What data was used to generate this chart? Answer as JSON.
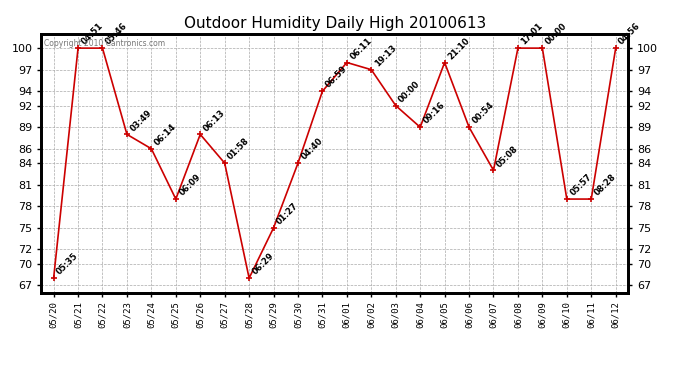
{
  "title": "Outdoor Humidity Daily High 20100613",
  "copyright": "Copyright 2010 Cantronics.com",
  "dates": [
    "05/20",
    "05/21",
    "05/22",
    "05/23",
    "05/24",
    "05/25",
    "05/26",
    "05/27",
    "05/28",
    "05/29",
    "05/30",
    "05/31",
    "06/01",
    "06/02",
    "06/03",
    "06/04",
    "06/05",
    "06/06",
    "06/07",
    "06/08",
    "06/09",
    "06/10",
    "06/11",
    "06/12"
  ],
  "values": [
    68,
    100,
    100,
    88,
    86,
    79,
    88,
    84,
    68,
    75,
    84,
    94,
    98,
    97,
    92,
    89,
    98,
    89,
    83,
    100,
    100,
    79,
    79,
    100
  ],
  "labels": [
    "05:35",
    "04:51",
    "05:46",
    "03:49",
    "06:14",
    "06:09",
    "06:13",
    "01:58",
    "06:29",
    "01:27",
    "04:40",
    "06:59",
    "06:11",
    "19:13",
    "00:00",
    "09:16",
    "21:10",
    "00:54",
    "05:08",
    "17:01",
    "00:00",
    "05:57",
    "08:28",
    "04:56"
  ],
  "line_color": "#cc0000",
  "marker_color": "#cc0000",
  "bg_color": "#ffffff",
  "grid_color": "#aaaaaa",
  "title_fontsize": 11,
  "label_fontsize": 6.0,
  "tick_fontsize": 8,
  "xtick_fontsize": 6.5,
  "yticks": [
    67,
    70,
    72,
    75,
    78,
    81,
    84,
    86,
    89,
    92,
    94,
    97,
    100
  ],
  "ylim": [
    66,
    102
  ],
  "copyright_color": "#777777"
}
